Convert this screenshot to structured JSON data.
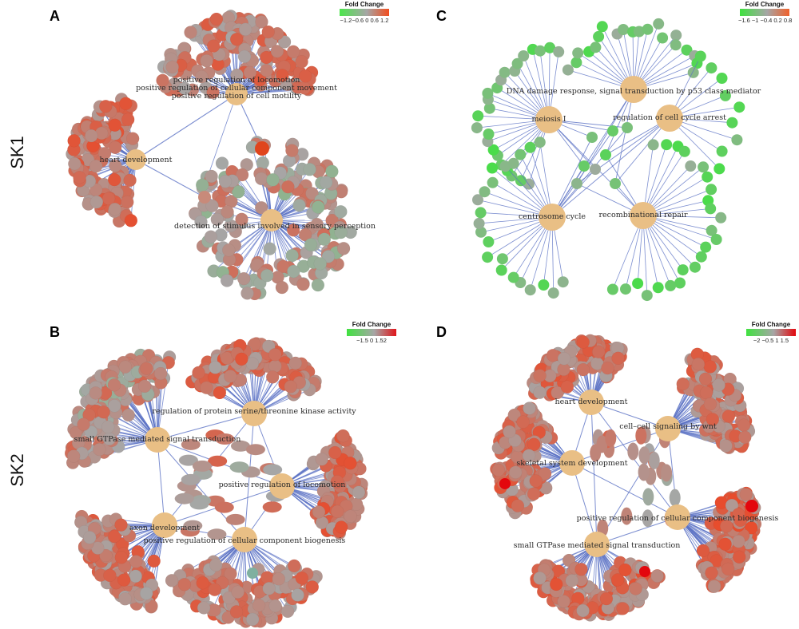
{
  "row_labels": {
    "top": "SK1",
    "bottom": "SK2"
  },
  "colors": {
    "hub": "#e9bf85",
    "edge": "#5b72c4",
    "low": "#3fe23f",
    "mid": "#a6a6a6",
    "high": "#f0401c"
  },
  "panels": [
    {
      "letter": "A",
      "legend": {
        "title": "Fold Change",
        "ticks": "−1.2−0.6  0   0.6  1.2",
        "low": "#4ce64c",
        "high": "#f24d1e"
      },
      "terms": [
        "positive regulation of locomotion",
        "positive regulation of cellular component movement",
        "positive regulation of cell motility",
        "heart development",
        "detection of stimulus involved in sensory perception"
      ]
    },
    {
      "letter": "C",
      "legend": {
        "title": "Fold Change",
        "ticks": "−1.6 −1 −0.4 0.2  0.8",
        "low": "#3fe23f",
        "high": "#f0602a"
      },
      "terms": [
        "DNA damage response, signal transduction by p53 class mediator",
        "meiosis I",
        "regulation of cell cycle arrest",
        "centrosome cycle",
        "recombinational repair"
      ]
    },
    {
      "letter": "B",
      "legend": {
        "title": "Fold Change",
        "ticks": "−1.5   0   1.52",
        "low": "#3fe23f",
        "high": "#e0151b"
      },
      "terms": [
        "regulation of protein serine/threonine kinase activity",
        "small GTPase mediated signal transduction",
        "positive regulation of locomotion",
        "axon development",
        "positive regulation of cellular component biogenesis"
      ]
    },
    {
      "letter": "D",
      "legend": {
        "title": "Fold Change",
        "ticks": "−2  −0.5  1  1.5",
        "low": "#3fe23f",
        "high": "#e3070d"
      },
      "terms": [
        "heart development",
        "cell–cell signaling by wnt",
        "skeletal system development",
        "positive regulation of cellular component biogenesis",
        "small GTPase mediated signal transduction"
      ]
    }
  ]
}
